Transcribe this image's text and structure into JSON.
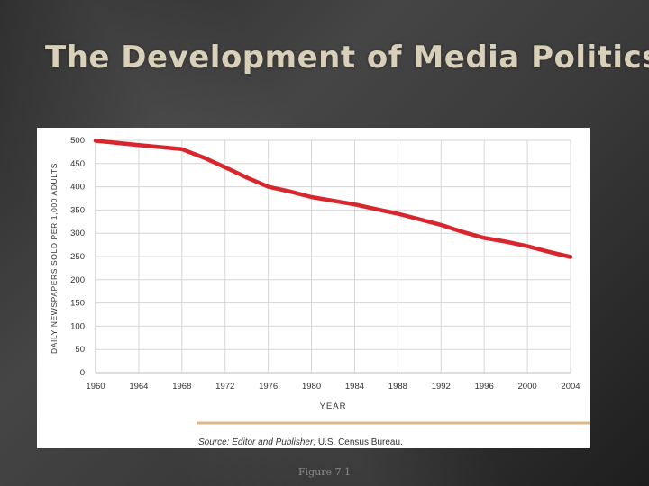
{
  "slide": {
    "title": "The Development of Media Politics",
    "caption": "Figure 7.1"
  },
  "source_note": {
    "label": "Source:",
    "italic": "Editor and Publisher;",
    "text": "U.S. Census Bureau."
  },
  "colors": {
    "line": "#d9262c",
    "grid": "#d6d6d6",
    "rule": "#d9b98a",
    "title": "#d8d0b8"
  },
  "chart_data": {
    "type": "line",
    "xlabel": "YEAR",
    "ylabel": "DAILY NEWSPAPERS SOLD PER 1,000 ADULTS",
    "xlim": [
      1960,
      2004
    ],
    "ylim": [
      0,
      500
    ],
    "x_ticks": [
      "1960",
      "1964",
      "1968",
      "1972",
      "1976",
      "1980",
      "1984",
      "1988",
      "1992",
      "1996",
      "2000",
      "2004"
    ],
    "y_ticks": [
      "0",
      "50",
      "100",
      "150",
      "200",
      "250",
      "300",
      "350",
      "400",
      "450",
      "500"
    ],
    "grid": true,
    "series": [
      {
        "x": [
          1960,
          1964,
          1968,
          1970,
          1972,
          1974,
          1976,
          1978,
          1980,
          1982,
          1984,
          1986,
          1988,
          1990,
          1992,
          1994,
          1996,
          1998,
          2000,
          2002,
          2004
        ],
        "values": [
          499,
          490,
          481,
          463,
          442,
          420,
          400,
          390,
          378,
          370,
          362,
          352,
          342,
          330,
          318,
          303,
          290,
          282,
          272,
          260,
          249
        ]
      }
    ]
  }
}
